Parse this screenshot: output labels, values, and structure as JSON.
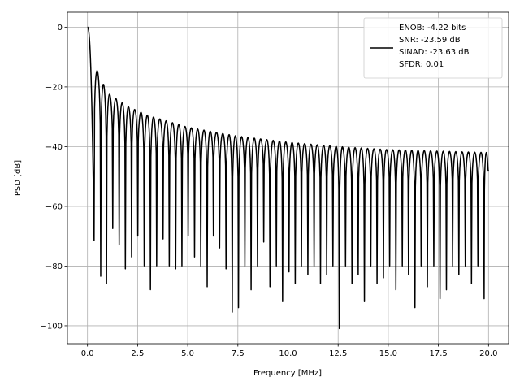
{
  "chart_data": {
    "type": "line",
    "title": "",
    "xlabel": "Frequency [MHz]",
    "ylabel": "PSD [dB]",
    "xlim": [
      -1.0,
      21.0
    ],
    "ylim": [
      -106,
      5
    ],
    "x_ticks": [
      0.0,
      2.5,
      5.0,
      7.5,
      10.0,
      12.5,
      15.0,
      17.5,
      20.0
    ],
    "x_tick_labels": [
      "0.0",
      "2.5",
      "5.0",
      "7.5",
      "10.0",
      "12.5",
      "15.0",
      "17.5",
      "20.0"
    ],
    "y_ticks": [
      0,
      -20,
      -40,
      -60,
      -80,
      -100
    ],
    "y_tick_labels": [
      "0",
      "−20",
      "−40",
      "−60",
      "−80",
      "−100"
    ],
    "grid": true,
    "legend_position": "top-right",
    "series_color": "#000000",
    "legend_entries": [
      "ENOB: -4.22 bits",
      "SNR: -23.59 dB",
      "SINAD: -23.63 dB",
      "SFDR: 0.01"
    ],
    "series": [
      {
        "name": "ENOB: -4.22 bits",
        "x_range": [
          0.0,
          20.0
        ],
        "lobe_period": 0.333,
        "sidelobe_peaks": [
          {
            "x": 0.4,
            "y": -13.3
          },
          {
            "x": 1.0,
            "y": -22.0
          },
          {
            "x": 2.0,
            "y": -26.5
          },
          {
            "x": 3.0,
            "y": -29.5
          },
          {
            "x": 5.0,
            "y": -33.5
          },
          {
            "x": 7.5,
            "y": -36.5
          },
          {
            "x": 10.0,
            "y": -38.5
          },
          {
            "x": 12.5,
            "y": -40.0
          },
          {
            "x": 15.0,
            "y": -41.0
          },
          {
            "x": 17.5,
            "y": -41.5
          },
          {
            "x": 20.0,
            "y": -42.0
          }
        ],
        "nulls": [
          {
            "x": 0.33,
            "y": -71.5
          },
          {
            "x": 0.66,
            "y": -83.5
          },
          {
            "x": 0.95,
            "y": -86.0
          },
          {
            "x": 1.26,
            "y": -67.5
          },
          {
            "x": 1.58,
            "y": -73.0
          },
          {
            "x": 1.89,
            "y": -81.0
          },
          {
            "x": 2.2,
            "y": -77.0
          },
          {
            "x": 2.51,
            "y": -70.0
          },
          {
            "x": 2.83,
            "y": -80.0
          },
          {
            "x": 3.14,
            "y": -88.0
          },
          {
            "x": 3.45,
            "y": -80.0
          },
          {
            "x": 3.77,
            "y": -71.0
          },
          {
            "x": 4.08,
            "y": -80.0
          },
          {
            "x": 4.4,
            "y": -81.0
          },
          {
            "x": 4.71,
            "y": -80.0
          },
          {
            "x": 5.02,
            "y": -70.0
          },
          {
            "x": 5.34,
            "y": -77.0
          },
          {
            "x": 5.65,
            "y": -80.0
          },
          {
            "x": 5.97,
            "y": -87.0
          },
          {
            "x": 6.28,
            "y": -70.0
          },
          {
            "x": 6.59,
            "y": -74.0
          },
          {
            "x": 6.91,
            "y": -81.0
          },
          {
            "x": 7.22,
            "y": -95.5
          },
          {
            "x": 7.53,
            "y": -94.0
          },
          {
            "x": 7.85,
            "y": -80.0
          },
          {
            "x": 8.16,
            "y": -88.0
          },
          {
            "x": 8.48,
            "y": -80.0
          },
          {
            "x": 8.79,
            "y": -72.0
          },
          {
            "x": 9.1,
            "y": -87.0
          },
          {
            "x": 9.42,
            "y": -80.0
          },
          {
            "x": 9.73,
            "y": -92.0
          },
          {
            "x": 10.05,
            "y": -82.0
          },
          {
            "x": 10.36,
            "y": -86.0
          },
          {
            "x": 10.67,
            "y": -80.0
          },
          {
            "x": 10.99,
            "y": -83.0
          },
          {
            "x": 11.3,
            "y": -80.0
          },
          {
            "x": 11.62,
            "y": -86.0
          },
          {
            "x": 11.93,
            "y": -83.0
          },
          {
            "x": 12.24,
            "y": -80.0
          },
          {
            "x": 12.56,
            "y": -101.0
          },
          {
            "x": 12.87,
            "y": -80.0
          },
          {
            "x": 13.19,
            "y": -86.0
          },
          {
            "x": 13.5,
            "y": -83.0
          },
          {
            "x": 13.81,
            "y": -92.0
          },
          {
            "x": 14.13,
            "y": -80.0
          },
          {
            "x": 14.44,
            "y": -86.0
          },
          {
            "x": 14.76,
            "y": -84.0
          },
          {
            "x": 15.07,
            "y": -80.0
          },
          {
            "x": 15.38,
            "y": -88.0
          },
          {
            "x": 15.7,
            "y": -80.0
          },
          {
            "x": 16.01,
            "y": -83.0
          },
          {
            "x": 16.33,
            "y": -94.0
          },
          {
            "x": 16.64,
            "y": -80.0
          },
          {
            "x": 16.95,
            "y": -87.0
          },
          {
            "x": 17.27,
            "y": -80.0
          },
          {
            "x": 17.58,
            "y": -91.0
          },
          {
            "x": 17.9,
            "y": -88.0
          },
          {
            "x": 18.21,
            "y": -80.0
          },
          {
            "x": 18.52,
            "y": -83.0
          },
          {
            "x": 18.84,
            "y": -80.0
          },
          {
            "x": 19.15,
            "y": -86.0
          },
          {
            "x": 19.47,
            "y": -80.0
          },
          {
            "x": 19.78,
            "y": -91.0
          }
        ]
      }
    ]
  }
}
